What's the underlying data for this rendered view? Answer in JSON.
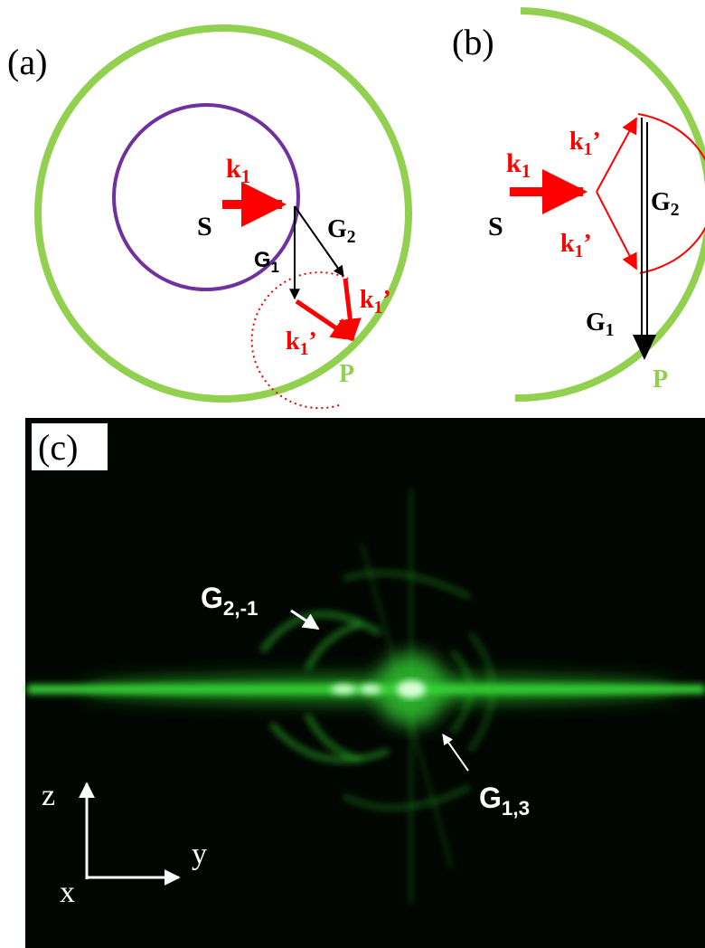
{
  "panel_a": {
    "label": "(a)",
    "k1": {
      "text": "k",
      "sub": "1"
    },
    "source": "S",
    "g1": {
      "text": "G",
      "sub": "1"
    },
    "g2": {
      "text": "G",
      "sub": "2"
    },
    "k1_prime_upper": {
      "text": "k",
      "sub": "1",
      "prime": "’"
    },
    "k1_prime_lower": {
      "text": "k",
      "sub": "1",
      "prime": "’"
    },
    "point": "P"
  },
  "panel_b": {
    "label": "(b)",
    "k1": {
      "text": "k",
      "sub": "1"
    },
    "source": "S",
    "k1_prime_upper": {
      "text": "k",
      "sub": "1",
      "prime": "’"
    },
    "k1_prime_lower": {
      "text": "k",
      "sub": "1",
      "prime": "’"
    },
    "g2": {
      "text": "G",
      "sub": "2"
    },
    "g1": {
      "text": "G",
      "sub": "1"
    },
    "point": "P"
  },
  "panel_c": {
    "label": "(c)",
    "g2_m1": {
      "text": "G",
      "sub": "2,-1"
    },
    "g1_3": {
      "text": "G",
      "sub": "1,3"
    },
    "axis_z": "z",
    "axis_y": "y",
    "axis_x": "x"
  }
}
